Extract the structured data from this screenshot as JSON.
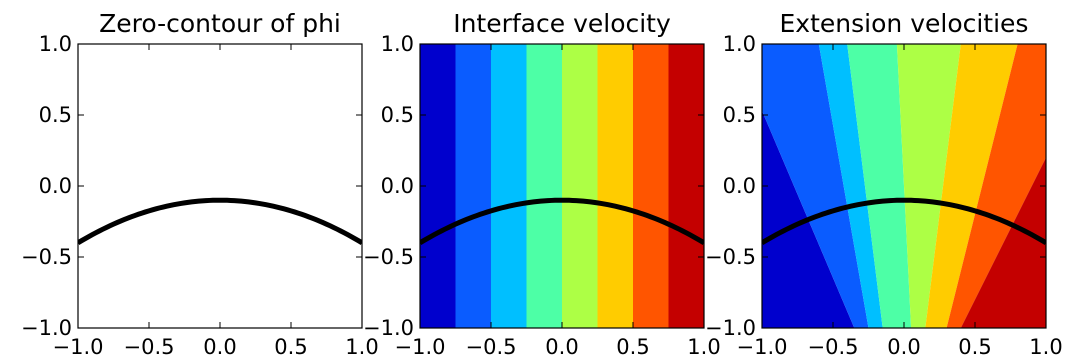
{
  "chart_data": [
    {
      "type": "line",
      "title": "Zero-contour of phi",
      "xlim": [
        -1.0,
        1.0
      ],
      "ylim": [
        -1.0,
        1.0
      ],
      "x_ticks": [
        "−1.0",
        "−0.5",
        "0.0",
        "0.5",
        "1.0"
      ],
      "y_ticks": [
        "1.0",
        "0.5",
        "0.0",
        "−0.5",
        "−1.0"
      ],
      "curve": {
        "form": "y = -0.1 - 0.3*x^2",
        "vertex": [
          0.0,
          -0.1
        ],
        "endpoints_y": -0.4,
        "color": "#000000"
      },
      "background": "#ffffff"
    },
    {
      "type": "heatmap",
      "title": "Interface velocity",
      "xlim": [
        -1.0,
        1.0
      ],
      "ylim": [
        -1.0,
        1.0
      ],
      "x_ticks": [
        "−1.0",
        "−0.5",
        "0.0",
        "0.5",
        "1.0"
      ],
      "y_ticks": [
        "1.0",
        "0.5",
        "0.0",
        "−0.5",
        "−1.0"
      ],
      "bands": {
        "direction": "vertical",
        "boundaries_x": [
          -1.0,
          -0.75,
          -0.5,
          -0.25,
          0.0,
          0.25,
          0.5,
          0.75,
          1.0
        ],
        "colors": [
          "#0000cd",
          "#0a5cff",
          "#00bfff",
          "#4dffa6",
          "#adff45",
          "#ffcc00",
          "#ff5500",
          "#c40000"
        ]
      },
      "curve": {
        "form": "y = -0.1 - 0.3*x^2",
        "vertex": [
          0.0,
          -0.1
        ],
        "endpoints_y": -0.4,
        "color": "#000000"
      }
    },
    {
      "type": "heatmap",
      "title": "Extension velocities",
      "xlim": [
        -1.0,
        1.0
      ],
      "ylim": [
        -1.0,
        1.0
      ],
      "x_ticks": [
        "−1.0",
        "−0.5",
        "0.0",
        "0.5",
        "1.0"
      ],
      "y_ticks": [
        "1.0",
        "0.5",
        "0.0",
        "−0.5",
        "−1.0"
      ],
      "regions": {
        "boundaries_top_x": [
          -1.2,
          -0.6,
          -0.4,
          -0.05,
          0.4,
          0.8,
          1.4
        ],
        "boundaries_bottom_x": [
          -0.35,
          -0.25,
          -0.15,
          0.05,
          0.15,
          0.3,
          0.4
        ],
        "colors": [
          "#0000cd",
          "#0a5cff",
          "#00bfff",
          "#4dffa6",
          "#adff45",
          "#ffcc00",
          "#ff5500",
          "#c40000"
        ]
      },
      "curve": {
        "form": "y = -0.1 - 0.3*x^2",
        "vertex": [
          0.0,
          -0.1
        ],
        "endpoints_y": -0.4,
        "color": "#000000"
      }
    }
  ]
}
